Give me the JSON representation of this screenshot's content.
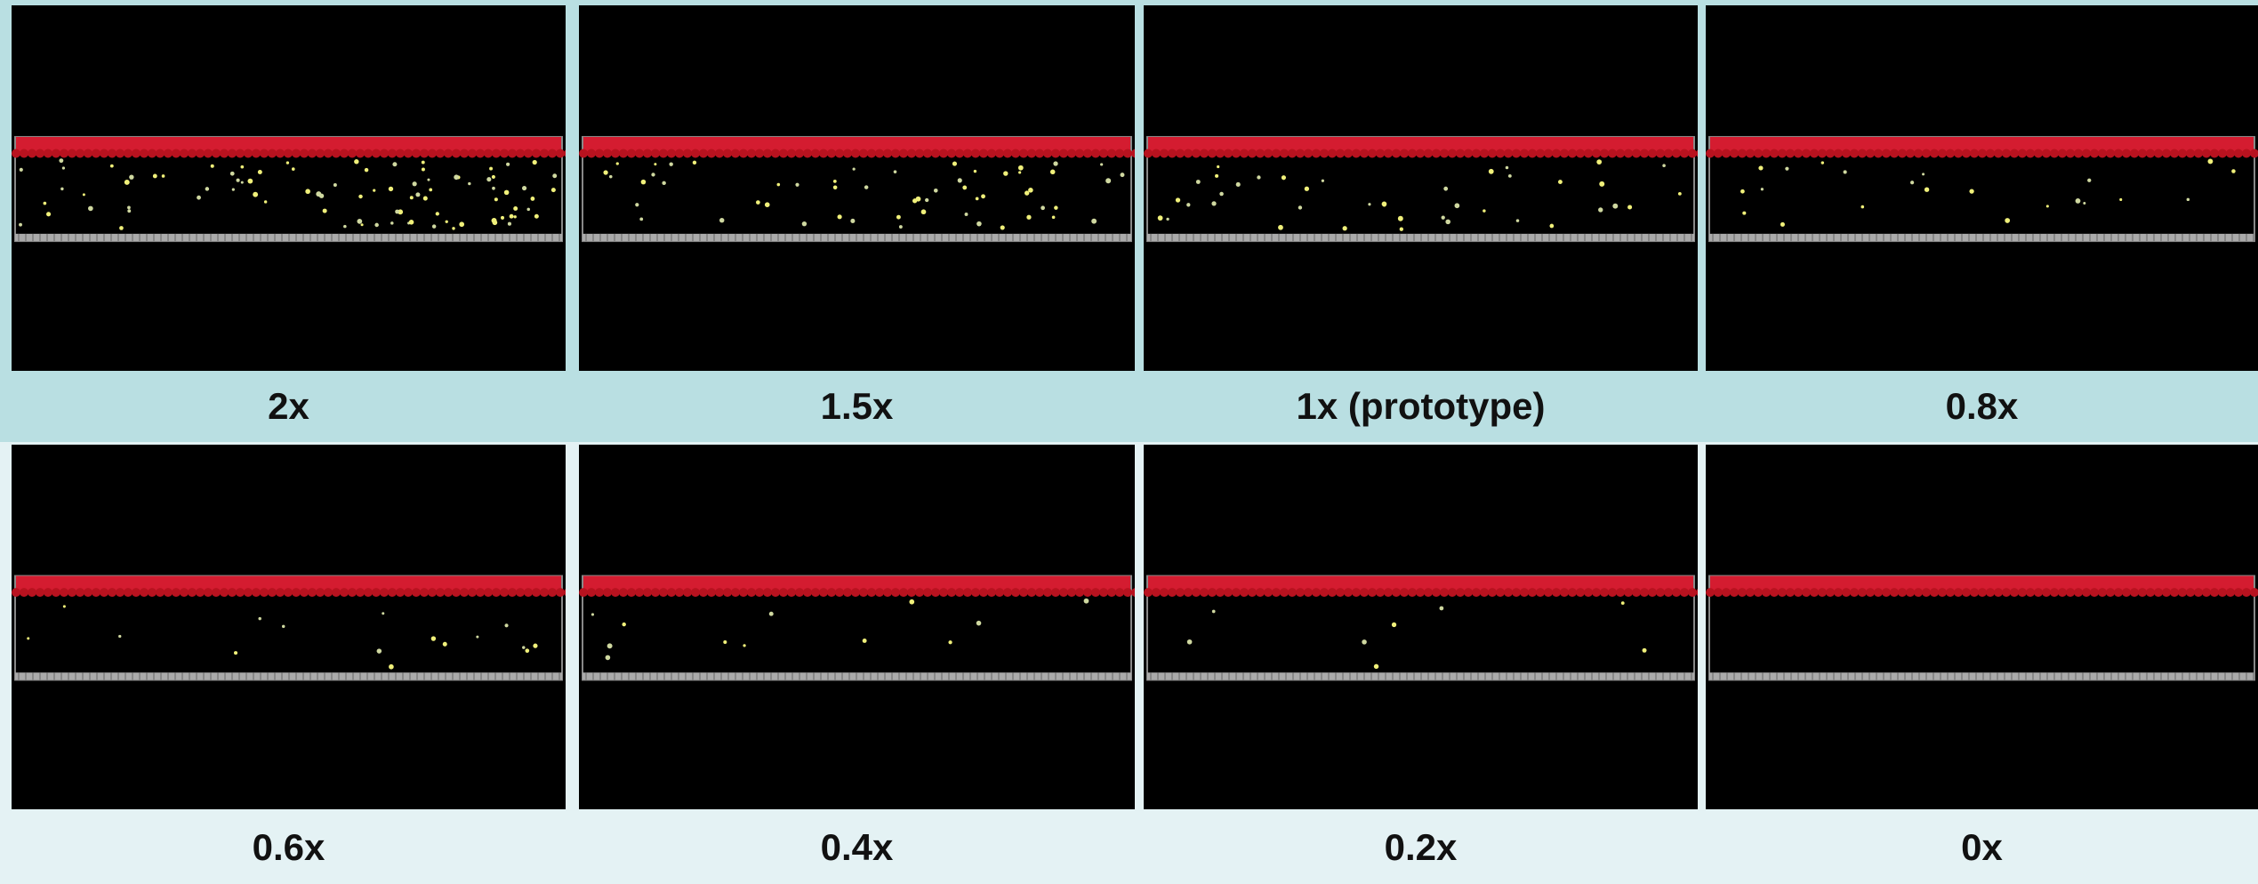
{
  "panels": [
    {
      "label": "2x"
    },
    {
      "label": "1.5x"
    },
    {
      "label": "1x (prototype)"
    },
    {
      "label": "0.8x"
    },
    {
      "label": "0.6x"
    },
    {
      "label": "0.4x"
    },
    {
      "label": "0.2x"
    },
    {
      "label": "0x"
    }
  ]
}
